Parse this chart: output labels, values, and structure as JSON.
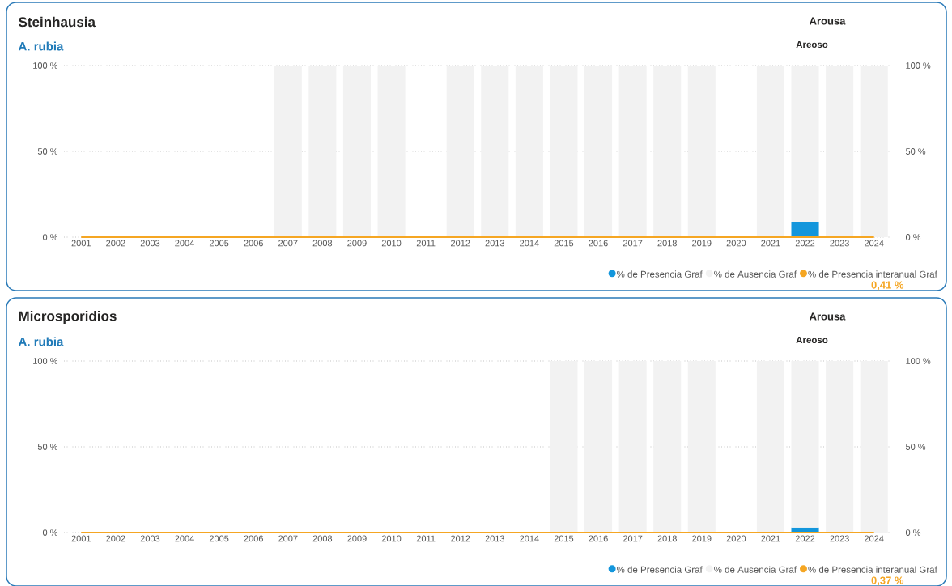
{
  "chart_data": [
    {
      "type": "bar",
      "stacked": true,
      "title": "Steinhausia",
      "subtitle": "A. rubia",
      "annotations": [
        "Arousa",
        "Areoso",
        "0,41 %"
      ],
      "categories": [
        "2001",
        "2002",
        "2003",
        "2004",
        "2005",
        "2006",
        "2007",
        "2008",
        "2009",
        "2010",
        "2011",
        "2012",
        "2013",
        "2014",
        "2015",
        "2016",
        "2017",
        "2018",
        "2019",
        "2020",
        "2021",
        "2022",
        "2023",
        "2024"
      ],
      "series": [
        {
          "name": "% de Presencia Graf",
          "color": "#1396dc",
          "values": [
            null,
            null,
            null,
            null,
            null,
            null,
            0,
            0,
            0,
            0,
            null,
            0,
            0,
            0,
            0,
            0,
            0,
            0,
            0,
            null,
            0,
            9,
            0,
            0
          ]
        },
        {
          "name": "% de Ausencia Graf",
          "color": "#f2f2f2",
          "values": [
            null,
            null,
            null,
            null,
            null,
            null,
            100,
            100,
            100,
            100,
            null,
            100,
            100,
            100,
            100,
            100,
            100,
            100,
            100,
            null,
            100,
            91,
            100,
            100
          ]
        },
        {
          "name": "% de Presencia interanual Graf",
          "color": "#f5a623",
          "type": "line",
          "values": [
            0,
            0,
            0,
            0,
            0,
            0,
            0,
            0,
            0,
            0,
            0,
            0,
            0,
            0,
            0,
            0,
            0,
            0,
            0,
            0,
            0,
            0,
            0,
            0
          ]
        }
      ],
      "ylim": [
        0,
        100
      ],
      "yticks": [
        {
          "value": 0,
          "label": "0 %"
        },
        {
          "value": 50,
          "label": "50 %"
        },
        {
          "value": 100,
          "label": "100 %"
        }
      ],
      "y2lim": [
        0,
        100
      ],
      "y2ticks": [
        {
          "value": 0,
          "label": "0 %"
        },
        {
          "value": 50,
          "label": "50 %"
        },
        {
          "value": 100,
          "label": "100 %"
        }
      ],
      "grid": "y",
      "legend": "bottom right"
    },
    {
      "type": "bar",
      "stacked": true,
      "title": "Microsporidios",
      "subtitle": "A. rubia",
      "annotations": [
        "Arousa",
        "Areoso",
        "0,37 %"
      ],
      "categories": [
        "2001",
        "2002",
        "2003",
        "2004",
        "2005",
        "2006",
        "2007",
        "2008",
        "2009",
        "2010",
        "2011",
        "2012",
        "2013",
        "2014",
        "2015",
        "2016",
        "2017",
        "2018",
        "2019",
        "2020",
        "2021",
        "2022",
        "2023",
        "2024"
      ],
      "series": [
        {
          "name": "% de Presencia Graf",
          "color": "#1396dc",
          "values": [
            null,
            null,
            null,
            null,
            null,
            null,
            null,
            null,
            null,
            null,
            null,
            null,
            null,
            null,
            0,
            0,
            0,
            0,
            0,
            null,
            0,
            3,
            0,
            0
          ]
        },
        {
          "name": "% de Ausencia Graf",
          "color": "#f2f2f2",
          "values": [
            null,
            null,
            null,
            null,
            null,
            null,
            null,
            null,
            null,
            null,
            null,
            null,
            null,
            null,
            100,
            100,
            100,
            100,
            100,
            null,
            100,
            97,
            100,
            100
          ]
        },
        {
          "name": "% de Presencia interanual Graf",
          "color": "#f5a623",
          "type": "line",
          "values": [
            0,
            0,
            0,
            0,
            0,
            0,
            0,
            0,
            0,
            0,
            0,
            0,
            0,
            0,
            0,
            0,
            0,
            0,
            0,
            0,
            0,
            0,
            0,
            0
          ]
        }
      ],
      "ylim": [
        0,
        100
      ],
      "yticks": [
        {
          "value": 0,
          "label": "0 %"
        },
        {
          "value": 50,
          "label": "50 %"
        },
        {
          "value": 100,
          "label": "100 %"
        }
      ],
      "y2lim": [
        0,
        100
      ],
      "y2ticks": [
        {
          "value": 0,
          "label": "0 %"
        },
        {
          "value": 50,
          "label": "50 %"
        },
        {
          "value": 100,
          "label": "100 %"
        }
      ],
      "grid": "y",
      "legend": "bottom right"
    }
  ]
}
